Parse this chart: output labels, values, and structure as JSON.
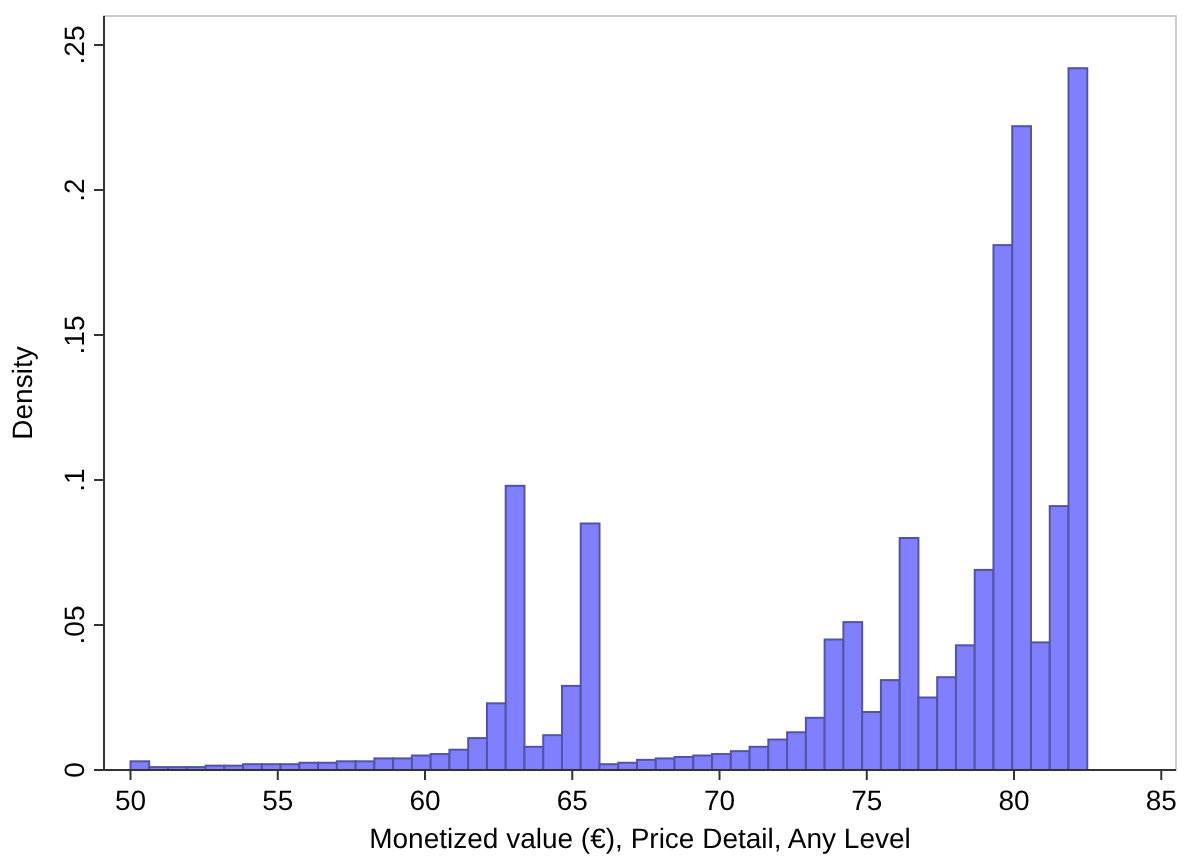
{
  "chart_data": {
    "type": "histogram",
    "xlabel": "Monetized value (€), Price Detail, Any Level",
    "ylabel": "Density",
    "bins": [
      50,
      50.637,
      51.274,
      51.911,
      52.548,
      53.185,
      53.822,
      54.459,
      55.096,
      55.733,
      56.37,
      57.007,
      57.644,
      58.281,
      58.918,
      59.555,
      60.192,
      60.829,
      61.466,
      62.103,
      62.74,
      63.377,
      64.014,
      64.651,
      65.288,
      65.925,
      66.562,
      67.199,
      67.836,
      68.473,
      69.11,
      69.747,
      70.384,
      71.021,
      71.658,
      72.295,
      72.932,
      73.569,
      74.206,
      74.843,
      75.48,
      76.117,
      76.754,
      77.391,
      78.028,
      78.665,
      79.302,
      79.939,
      80.576,
      81.213,
      81.85,
      82.487
    ],
    "values": [
      0.003,
      0.001,
      0.001,
      0.001,
      0.0015,
      0.0015,
      0.002,
      0.002,
      0.002,
      0.0025,
      0.0025,
      0.003,
      0.003,
      0.004,
      0.004,
      0.005,
      0.0055,
      0.007,
      0.011,
      0.023,
      0.098,
      0.008,
      0.012,
      0.029,
      0.085,
      0.002,
      0.0025,
      0.0035,
      0.004,
      0.0045,
      0.005,
      0.0055,
      0.0065,
      0.008,
      0.0105,
      0.013,
      0.018,
      0.045,
      0.051,
      0.02,
      0.031,
      0.08,
      0.025,
      0.032,
      0.043,
      0.069,
      0.181,
      0.222,
      0.044,
      0.091,
      0.242
    ],
    "color": "#8080ff",
    "xlim": [
      49.1,
      85.5
    ],
    "xticks": [
      50,
      55,
      60,
      65,
      70,
      75,
      80,
      85
    ],
    "ylim": [
      0,
      0.26
    ],
    "yticks": [
      {
        "value": 0,
        "label": "0"
      },
      {
        "value": 0.05,
        "label": ".05"
      },
      {
        "value": 0.1,
        "label": ".1"
      },
      {
        "value": 0.15,
        "label": ".15"
      },
      {
        "value": 0.2,
        "label": ".2"
      },
      {
        "value": 0.25,
        "label": ".25"
      }
    ]
  }
}
